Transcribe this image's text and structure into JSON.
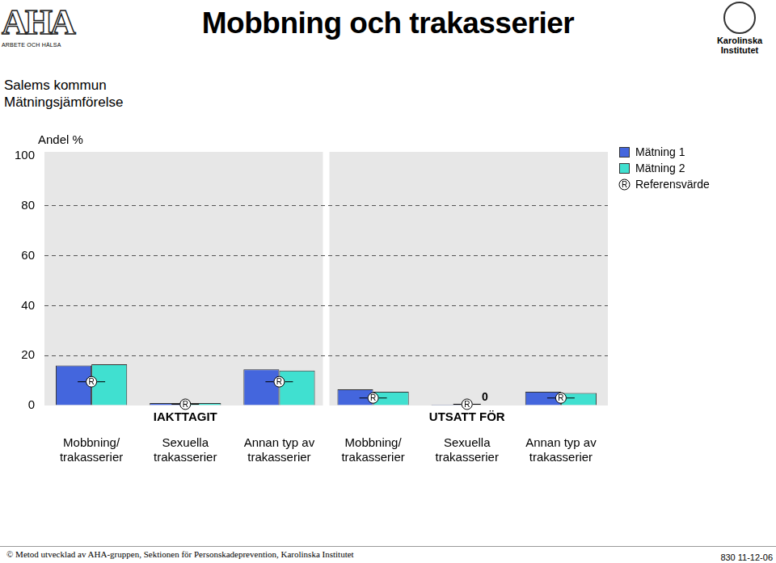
{
  "header": {
    "title": "Mobbning och trakasserier",
    "logo_left": {
      "mark": "AHA",
      "caption": "ARBETE OCH HÄLSA"
    },
    "logo_right": [
      "Karolinska",
      "Institutet"
    ]
  },
  "chart_data": {
    "type": "bar",
    "title": "Salems kommun",
    "subtitle": "Mätningsjämförelse",
    "y_label": "Andel %",
    "categories": [
      "Mobbning/\ntrakasserier",
      "Sexuella\ntrakasserier",
      "Annan typ av\ntrakasserier",
      "Mobbning/\ntrakasserier",
      "Sexuella\ntrakasserier",
      "Annan typ av\ntrakasserier"
    ],
    "groups": [
      "IAKTTAGIT",
      "IAKTTAGIT",
      "IAKTTAGIT",
      "UTSATT FÖR",
      "UTSATT FÖR",
      "UTSATT FÖR"
    ],
    "series": [
      {
        "name": "Mätning 1",
        "type": "bar",
        "color": "#4466dd",
        "values": [
          16,
          1,
          14.5,
          6.5,
          0.3,
          5.5
        ]
      },
      {
        "name": "Mätning 2",
        "type": "bar",
        "color": "#40e0d0",
        "values": [
          16.5,
          1,
          14,
          5.5,
          0,
          5
        ],
        "value_labels": [
          null,
          null,
          null,
          null,
          "0",
          null
        ]
      },
      {
        "name": "Referensvärde",
        "type": "scatter",
        "marker": "R",
        "color": "#000000",
        "values": [
          9.5,
          0.5,
          9.5,
          3,
          0.5,
          3
        ]
      }
    ],
    "ylim": [
      0,
      100
    ],
    "yticks": [
      0,
      20,
      40,
      60,
      80,
      100
    ],
    "grid": true,
    "legend": "top-right"
  },
  "footer": {
    "left": "© Metod utvecklad av AHA-gruppen, Sektionen för Personskadeprevention, Karolinska Institutet",
    "right": "830 11-12-06"
  }
}
